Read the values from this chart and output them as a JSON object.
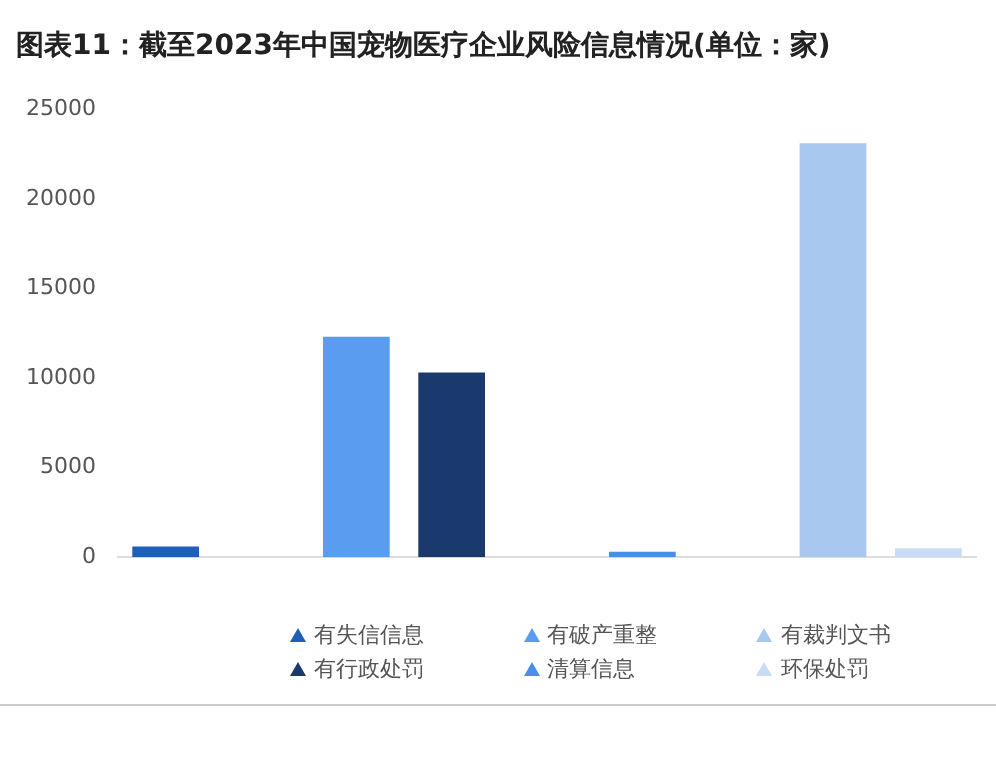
{
  "chart_data": {
    "type": "bar",
    "title": "图表11：截至2023年中国宠物医疗企业风险信息情况(单位：家)",
    "categories": [
      null,
      null,
      null,
      null,
      null,
      null,
      null,
      null,
      null
    ],
    "series": [
      {
        "name": "有失信信息",
        "color": "#1f5fb8",
        "values": [
          600,
          null,
          null,
          null,
          null,
          null,
          null,
          null,
          null
        ]
      },
      {
        "name": "有破产重整",
        "color": "#5a9cf0",
        "values": [
          null,
          null,
          12300,
          null,
          null,
          null,
          null,
          null,
          null
        ]
      },
      {
        "name": "有裁判文书",
        "color": "#a9c8f0",
        "values": [
          null,
          null,
          null,
          null,
          null,
          null,
          null,
          23100,
          null
        ]
      },
      {
        "name": "有行政处罚",
        "color": "#1a3a6e",
        "values": [
          null,
          null,
          null,
          10300,
          null,
          null,
          null,
          null,
          null
        ]
      },
      {
        "name": "清算信息",
        "color": "#4a8ee8",
        "values": [
          null,
          null,
          null,
          null,
          null,
          300,
          null,
          null,
          null
        ]
      },
      {
        "name": "环保处罚",
        "color": "#c8dcf5",
        "values": [
          null,
          null,
          null,
          null,
          null,
          null,
          null,
          null,
          500
        ]
      }
    ],
    "ylim": [
      0,
      25000
    ],
    "yticks": [
      0,
      5000,
      10000,
      15000,
      20000,
      25000
    ],
    "grid": false,
    "legend": "bottom",
    "marker": "triangle"
  }
}
